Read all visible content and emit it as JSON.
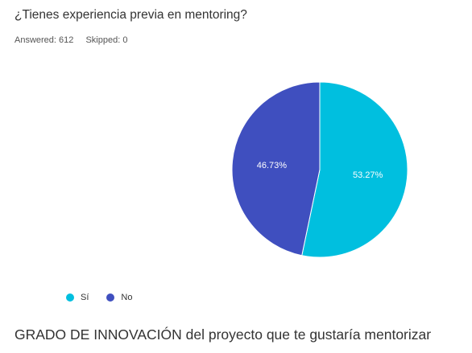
{
  "question": {
    "title": "¿Tienes experiencia previa en mentoring?",
    "answered_label": "Answered: 612",
    "skipped_label": "Skipped: 0"
  },
  "chart_data": {
    "type": "pie",
    "categories": [
      "Sí",
      "No"
    ],
    "values": [
      53.27,
      46.73
    ],
    "labels": [
      "53.27%",
      "46.73%"
    ],
    "colors": [
      "#00BFDF",
      "#3F4FBF"
    ],
    "legend_position": "bottom-left"
  },
  "next_question": {
    "title": "GRADO DE INNOVACIÓN del proyecto que te gustaría mentorizar"
  }
}
